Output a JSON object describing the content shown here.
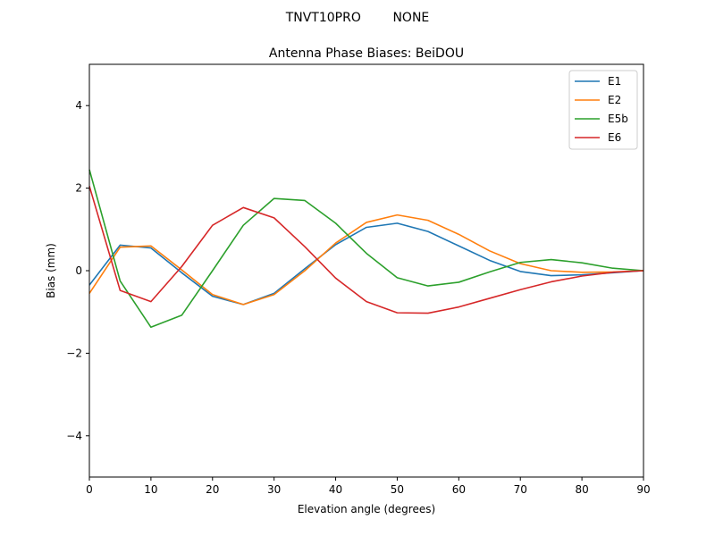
{
  "figure_title": "TNVT10PRO        NONE",
  "chart_data": {
    "type": "line",
    "title": "Antenna Phase Biases: BeiDOU",
    "xlabel": "Elevation angle (degrees)",
    "ylabel": "Bias (mm)",
    "xlim": [
      0,
      90
    ],
    "ylim": [
      -5,
      5
    ],
    "xticks": [
      0,
      10,
      20,
      30,
      40,
      50,
      60,
      70,
      80,
      90
    ],
    "yticks": [
      -4,
      -2,
      0,
      2,
      4
    ],
    "grid": false,
    "legend_position": "top-right",
    "x": [
      0,
      5,
      10,
      15,
      20,
      25,
      30,
      35,
      40,
      45,
      50,
      55,
      60,
      65,
      70,
      75,
      80,
      85,
      90
    ],
    "series": [
      {
        "name": "E1",
        "color": "#1f77b4",
        "values": [
          -0.35,
          0.62,
          0.55,
          -0.05,
          -0.62,
          -0.82,
          -0.55,
          0.05,
          0.63,
          1.05,
          1.15,
          0.95,
          0.6,
          0.25,
          -0.02,
          -0.12,
          -0.1,
          -0.05,
          0.0
        ]
      },
      {
        "name": "E2",
        "color": "#ff7f0e",
        "values": [
          -0.55,
          0.57,
          0.6,
          0.02,
          -0.58,
          -0.82,
          -0.58,
          0.0,
          0.67,
          1.17,
          1.35,
          1.22,
          0.88,
          0.48,
          0.17,
          0.0,
          -0.04,
          -0.03,
          0.0
        ]
      },
      {
        "name": "E5b",
        "color": "#2ca02c",
        "values": [
          2.45,
          -0.25,
          -1.37,
          -1.08,
          0.0,
          1.1,
          1.75,
          1.7,
          1.15,
          0.42,
          -0.17,
          -0.37,
          -0.28,
          -0.03,
          0.2,
          0.27,
          0.19,
          0.06,
          0.0
        ]
      },
      {
        "name": "E6",
        "color": "#d62728",
        "values": [
          2.05,
          -0.48,
          -0.75,
          0.1,
          1.1,
          1.53,
          1.28,
          0.58,
          -0.18,
          -0.75,
          -1.02,
          -1.03,
          -0.88,
          -0.67,
          -0.46,
          -0.27,
          -0.13,
          -0.04,
          0.0
        ]
      }
    ]
  }
}
